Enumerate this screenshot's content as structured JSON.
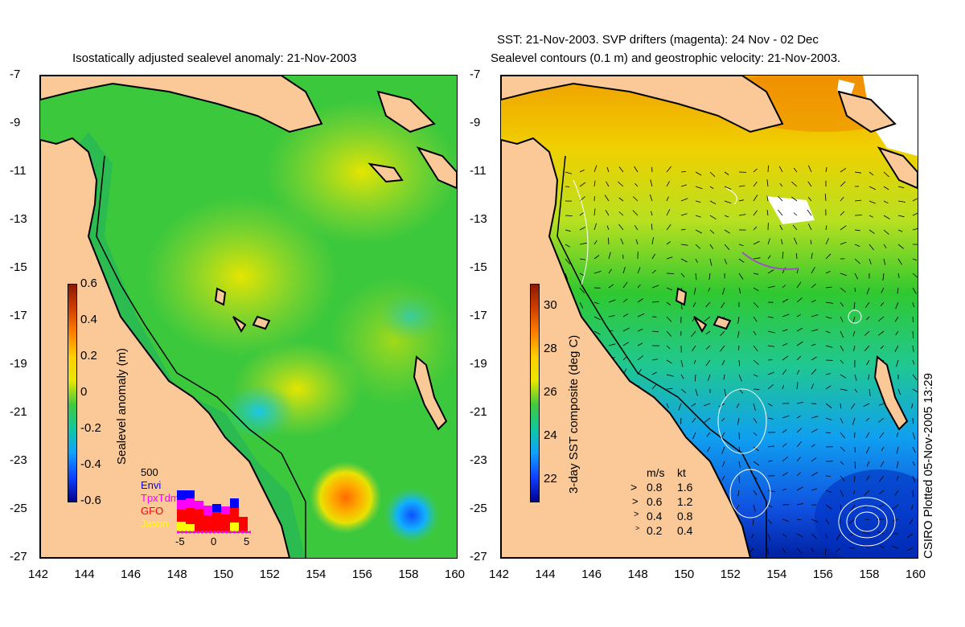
{
  "left_panel": {
    "title": "Isostatically adjusted sealevel anomaly: 21-Nov-2003",
    "colorbar_label": "Sealevel anomaly (m)",
    "colorbar_ticks": [
      "0.6",
      "0.4",
      "0.2",
      "0",
      "-0.2",
      "-0.4",
      "-0.6"
    ],
    "histogram": {
      "top_value": "500",
      "legend": [
        {
          "label": "Envi",
          "color": "#0000ff"
        },
        {
          "label": "TpxTdm",
          "color": "#ff00ff"
        },
        {
          "label": "GFO",
          "color": "#ff0000"
        },
        {
          "label": "Jason",
          "color": "#ffff00"
        }
      ],
      "x_ticks": [
        "-5",
        "0",
        "5"
      ]
    }
  },
  "right_panel": {
    "title_line1": "SST: 21-Nov-2003. SVP drifters (magenta): 24 Nov - 02 Dec",
    "title_line2": "Sealevel contours (0.1 m) and geostrophic velocity: 21-Nov-2003.",
    "colorbar_label": "3-day SST composite (deg C)",
    "colorbar_ticks": [
      "30",
      "28",
      "26",
      "24",
      "22"
    ],
    "velocity_legend": {
      "header_ms": "m/s",
      "header_kt": "kt",
      "rows": [
        {
          "ms": "0.8",
          "kt": "1.6"
        },
        {
          "ms": "0.6",
          "kt": "1.2"
        },
        {
          "ms": "0.4",
          "kt": "0.8"
        },
        {
          "ms": "0.2",
          "kt": "0.4"
        }
      ]
    }
  },
  "y_axis_ticks": [
    "-7",
    "-9",
    "-11",
    "-13",
    "-15",
    "-17",
    "-19",
    "-21",
    "-23",
    "-25",
    "-27"
  ],
  "x_axis_ticks": [
    "142",
    "144",
    "146",
    "148",
    "150",
    "152",
    "154",
    "156",
    "158",
    "160"
  ],
  "credit": "CSIRO Plotted 05-Nov-2005 13:29",
  "colors": {
    "land": "#fbc998",
    "sea_main": "#3cc83c",
    "shelf": "#1fb060"
  }
}
